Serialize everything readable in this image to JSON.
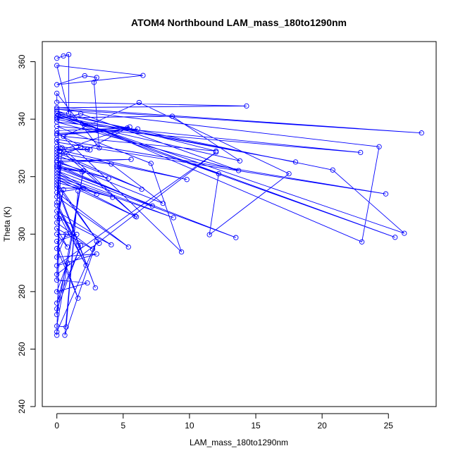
{
  "chart_data": {
    "type": "line",
    "title": "ATOM4 Northbound LAM_mass_180to1290nm",
    "xlabel": "LAM_mass_180to1290nm",
    "ylabel": "Theta (K)",
    "xlim": [
      -1.1,
      28.6
    ],
    "ylim": [
      240,
      367
    ],
    "xticks": [
      0,
      5,
      10,
      15,
      20,
      25
    ],
    "yticks": [
      240,
      260,
      280,
      300,
      320,
      340,
      360
    ],
    "grid": false,
    "legend": "none",
    "colors": {
      "series": "#0000ff",
      "axis": "#000000",
      "background": "#ffffff"
    },
    "markers": "open circles",
    "series": [
      {
        "points": [
          [
            0.0,
            361.2
          ],
          [
            0.5,
            362.0
          ],
          [
            0.9,
            362.5
          ],
          [
            0.9,
            342.0
          ],
          [
            0.0,
            358.7
          ],
          [
            6.5,
            355.2
          ],
          [
            0.0,
            352.0
          ],
          [
            2.1,
            355.1
          ],
          [
            3.0,
            354.5
          ],
          [
            2.8,
            352.8
          ],
          [
            3.2,
            330.0
          ],
          [
            0.0,
            349.0
          ],
          [
            0.0,
            345.9
          ],
          [
            14.3,
            344.6
          ],
          [
            0.0,
            344.0
          ],
          [
            27.5,
            335.2
          ],
          [
            0.0,
            343.5
          ],
          [
            24.3,
            330.4
          ],
          [
            23.0,
            297.3
          ],
          [
            0.0,
            342.8
          ],
          [
            12.0,
            328.9
          ],
          [
            0.5,
            334.0
          ],
          [
            6.2,
            345.8
          ],
          [
            17.5,
            321.0
          ],
          [
            11.5,
            299.8
          ],
          [
            12.2,
            321.0
          ],
          [
            0.0,
            342.0
          ],
          [
            20.8,
            322.3
          ],
          [
            26.2,
            300.3
          ],
          [
            0.1,
            341.5
          ],
          [
            25.5,
            298.9
          ],
          [
            0.0,
            341.0
          ],
          [
            18.0,
            325.1
          ],
          [
            0.0,
            340.5
          ],
          [
            8.7,
            341.0
          ],
          [
            13.8,
            325.5
          ],
          [
            0.0,
            340.0
          ],
          [
            1.8,
            341.9
          ],
          [
            13.7,
            322.1
          ],
          [
            0.0,
            339.0
          ],
          [
            22.9,
            328.4
          ],
          [
            0.0,
            337.5
          ],
          [
            7.1,
            324.6
          ],
          [
            9.4,
            293.8
          ],
          [
            0.0,
            336.0
          ],
          [
            5.3,
            336.9
          ],
          [
            2.3,
            329.5
          ],
          [
            0.0,
            335.0
          ],
          [
            6.1,
            336.6
          ],
          [
            0.0,
            334.5
          ],
          [
            5.5,
            337.3
          ],
          [
            0.2,
            329.0
          ],
          [
            0.0,
            333.0
          ],
          [
            24.8,
            314.0
          ],
          [
            0.0,
            332.0
          ],
          [
            5.9,
            306.3
          ],
          [
            0.0,
            330.5
          ],
          [
            2.5,
            329.3
          ],
          [
            0.0,
            329.5
          ],
          [
            9.8,
            319.0
          ],
          [
            0.0,
            328.5
          ],
          [
            6.4,
            315.6
          ],
          [
            0.0,
            327.5
          ],
          [
            1.8,
            330.3
          ],
          [
            0.0,
            326.5
          ],
          [
            4.1,
            324.4
          ],
          [
            8.0,
            310.7
          ],
          [
            0.0,
            325.5
          ],
          [
            5.6,
            326.0
          ],
          [
            0.0,
            325.0
          ],
          [
            3.9,
            319.4
          ],
          [
            0.0,
            324.0
          ],
          [
            7.2,
            309.8
          ],
          [
            0.0,
            323.5
          ],
          [
            1.9,
            321.7
          ],
          [
            0.0,
            323.0
          ],
          [
            13.5,
            298.8
          ],
          [
            0.0,
            322.0
          ],
          [
            3.0,
            313.9
          ],
          [
            0.0,
            321.0
          ],
          [
            8.8,
            305.7
          ],
          [
            0.0,
            320.0
          ],
          [
            6.0,
            306.0
          ],
          [
            0.0,
            319.0
          ],
          [
            4.2,
            312.8
          ],
          [
            0.0,
            318.0
          ],
          [
            3.2,
            296.8
          ],
          [
            0.0,
            317.0
          ],
          [
            2.9,
            281.3
          ],
          [
            0.0,
            316.0
          ],
          [
            2.0,
            316.0
          ],
          [
            0.0,
            314.5
          ],
          [
            5.4,
            295.5
          ],
          [
            0.0,
            313.0
          ],
          [
            0.4,
            330.0
          ],
          [
            0.0,
            311.0
          ],
          [
            1.6,
            296.1
          ],
          [
            0.0,
            310.0
          ],
          [
            2.2,
            289.1
          ],
          [
            0.0,
            308.0
          ],
          [
            4.1,
            296.3
          ],
          [
            0.0,
            306.0
          ],
          [
            0.5,
            315.5
          ],
          [
            0.0,
            304.0
          ],
          [
            2.7,
            294.8
          ],
          [
            0.0,
            302.0
          ],
          [
            0.8,
            295.5
          ],
          [
            0.0,
            300.0
          ],
          [
            1.5,
            299.9
          ],
          [
            0.0,
            297.5
          ],
          [
            1.6,
            277.7
          ],
          [
            0.0,
            295.0
          ],
          [
            0.7,
            300.0
          ],
          [
            0.0,
            292.0
          ],
          [
            3.0,
            293.1
          ],
          [
            0.0,
            289.0
          ],
          [
            12.0,
            328.5
          ],
          [
            0.0,
            286.0
          ],
          [
            0.3,
            324.7
          ],
          [
            0.0,
            284.0
          ],
          [
            2.3,
            283.0
          ],
          [
            0.0,
            280.0
          ],
          [
            0.8,
            290.0
          ],
          [
            0.0,
            276.0
          ],
          [
            1.8,
            296.0
          ],
          [
            0.0,
            274.0
          ],
          [
            0.0,
            272.0
          ],
          [
            2.0,
            322.0
          ],
          [
            0.0,
            268.0
          ],
          [
            0.7,
            267.7
          ],
          [
            1.6,
            315.0
          ],
          [
            0.6,
            264.8
          ],
          [
            3.0,
            297.5
          ],
          [
            0.0,
            266.0
          ],
          [
            0.0,
            264.8
          ],
          [
            0.2,
            305.4
          ]
        ]
      }
    ]
  }
}
